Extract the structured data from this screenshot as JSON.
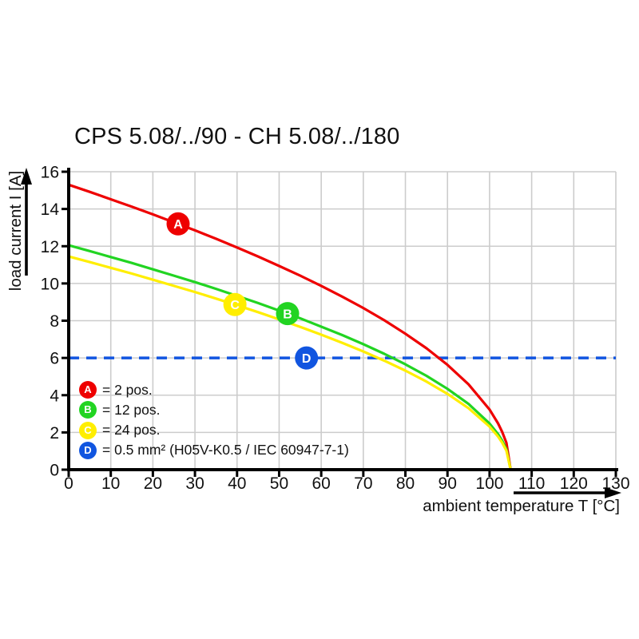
{
  "title": "CPS 5.08/../90 - CH 5.08/../180",
  "chart_data": {
    "type": "line",
    "title": "CPS 5.08/../90 - CH 5.08/../180",
    "xlabel": "ambient temperature T [°C]",
    "ylabel": "load current I [A]",
    "xlim": [
      0,
      130
    ],
    "ylim": [
      0,
      16
    ],
    "x_ticks": [
      0,
      10,
      20,
      30,
      40,
      50,
      60,
      70,
      80,
      90,
      100,
      110,
      120,
      130
    ],
    "y_ticks": [
      0,
      2,
      4,
      6,
      8,
      10,
      12,
      14,
      16
    ],
    "grid": true,
    "grid_color": "#cccccc",
    "axis_color": "#000000",
    "legend_position": "inside-lower-left",
    "series": [
      {
        "name": "A",
        "letter": "A",
        "label": "= 2 pos.",
        "color": "#ee0000",
        "style": "solid",
        "marker": {
          "T": 26,
          "I": 13.2
        },
        "points": [
          [
            0,
            15.3
          ],
          [
            5,
            14.92
          ],
          [
            10,
            14.52
          ],
          [
            15,
            14.12
          ],
          [
            20,
            13.71
          ],
          [
            25,
            13.28
          ],
          [
            30,
            12.85
          ],
          [
            35,
            12.4
          ],
          [
            40,
            11.93
          ],
          [
            45,
            11.45
          ],
          [
            50,
            10.94
          ],
          [
            55,
            10.42
          ],
          [
            60,
            9.87
          ],
          [
            65,
            9.29
          ],
          [
            70,
            8.68
          ],
          [
            75,
            8.02
          ],
          [
            80,
            7.3
          ],
          [
            85,
            6.52
          ],
          [
            90,
            5.63
          ],
          [
            95,
            4.58
          ],
          [
            100,
            3.23
          ],
          [
            102,
            2.49
          ],
          [
            103,
            2.03
          ],
          [
            104,
            1.44
          ],
          [
            105,
            0
          ]
        ]
      },
      {
        "name": "B",
        "letter": "B",
        "label": "= 12 pos.",
        "color": "#22d422",
        "style": "solid",
        "marker": {
          "T": 52,
          "I": 8.38
        },
        "points": [
          [
            0,
            12.05
          ],
          [
            5,
            11.74
          ],
          [
            10,
            11.42
          ],
          [
            15,
            11.1
          ],
          [
            20,
            10.76
          ],
          [
            25,
            10.42
          ],
          [
            30,
            10.07
          ],
          [
            35,
            9.71
          ],
          [
            40,
            9.33
          ],
          [
            45,
            8.95
          ],
          [
            50,
            8.54
          ],
          [
            55,
            8.13
          ],
          [
            60,
            7.68
          ],
          [
            65,
            7.23
          ],
          [
            70,
            6.74
          ],
          [
            75,
            6.22
          ],
          [
            80,
            5.66
          ],
          [
            85,
            5.04
          ],
          [
            90,
            4.34
          ],
          [
            95,
            3.53
          ],
          [
            100,
            2.48
          ],
          [
            102,
            1.91
          ],
          [
            103,
            1.56
          ],
          [
            104,
            1.1
          ],
          [
            105,
            0
          ]
        ]
      },
      {
        "name": "C",
        "letter": "C",
        "label": "= 24 pos.",
        "color": "#ffee00",
        "style": "solid",
        "marker": {
          "T": 39.5,
          "I": 8.87
        },
        "points": [
          [
            0,
            11.45
          ],
          [
            5,
            11.15
          ],
          [
            10,
            10.84
          ],
          [
            15,
            10.53
          ],
          [
            20,
            10.2
          ],
          [
            25,
            9.87
          ],
          [
            30,
            9.54
          ],
          [
            35,
            9.19
          ],
          [
            40,
            8.83
          ],
          [
            45,
            8.46
          ],
          [
            50,
            8.07
          ],
          [
            55,
            7.67
          ],
          [
            60,
            7.25
          ],
          [
            65,
            6.81
          ],
          [
            70,
            6.35
          ],
          [
            75,
            5.85
          ],
          [
            80,
            5.32
          ],
          [
            85,
            4.73
          ],
          [
            90,
            4.07
          ],
          [
            95,
            3.3
          ],
          [
            100,
            2.31
          ],
          [
            102,
            1.78
          ],
          [
            103,
            1.45
          ],
          [
            104,
            1.02
          ],
          [
            105,
            0
          ]
        ]
      },
      {
        "name": "D",
        "letter": "D",
        "label": "= 0.5 mm² (H05V-K0.5 / IEC 60947-7-1)",
        "color": "#1155e0",
        "style": "dashed-hline",
        "value": 6,
        "marker": {
          "T": 56.5,
          "I": 6
        },
        "points": [
          [
            0,
            6
          ],
          [
            130,
            6
          ]
        ]
      }
    ]
  }
}
